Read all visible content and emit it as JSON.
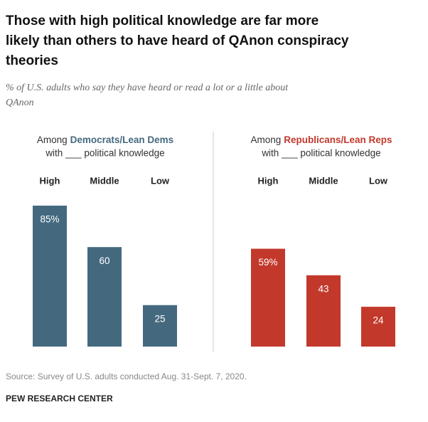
{
  "title": [
    "Those with high political knowledge are far more",
    "likely than others to have heard of QAnon conspiracy",
    "theories"
  ],
  "subtitle": [
    "% of U.S. adults who say they have heard or read a lot or a little about",
    "QAnon"
  ],
  "chart_data": [
    {
      "type": "bar",
      "title": "Among",
      "group": "Democrats/Lean Dems",
      "subtitle": "with ___ political knowledge",
      "categories": [
        "High",
        "Middle",
        "Low"
      ],
      "values": [
        85,
        60,
        25
      ],
      "value_labels": [
        "85%",
        "60",
        "25"
      ],
      "color": "#44697f"
    },
    {
      "type": "bar",
      "title": "Among",
      "group": "Republicans/Lean Reps",
      "subtitle": "with ___ political knowledge",
      "categories": [
        "High",
        "Middle",
        "Low"
      ],
      "values": [
        59,
        43,
        24
      ],
      "value_labels": [
        "59%",
        "43",
        "24"
      ],
      "color": "#c2392b"
    }
  ],
  "source": "Source: Survey of U.S. adults conducted Aug. 31-Sept. 7, 2020.",
  "credit": "PEW RESEARCH CENTER"
}
